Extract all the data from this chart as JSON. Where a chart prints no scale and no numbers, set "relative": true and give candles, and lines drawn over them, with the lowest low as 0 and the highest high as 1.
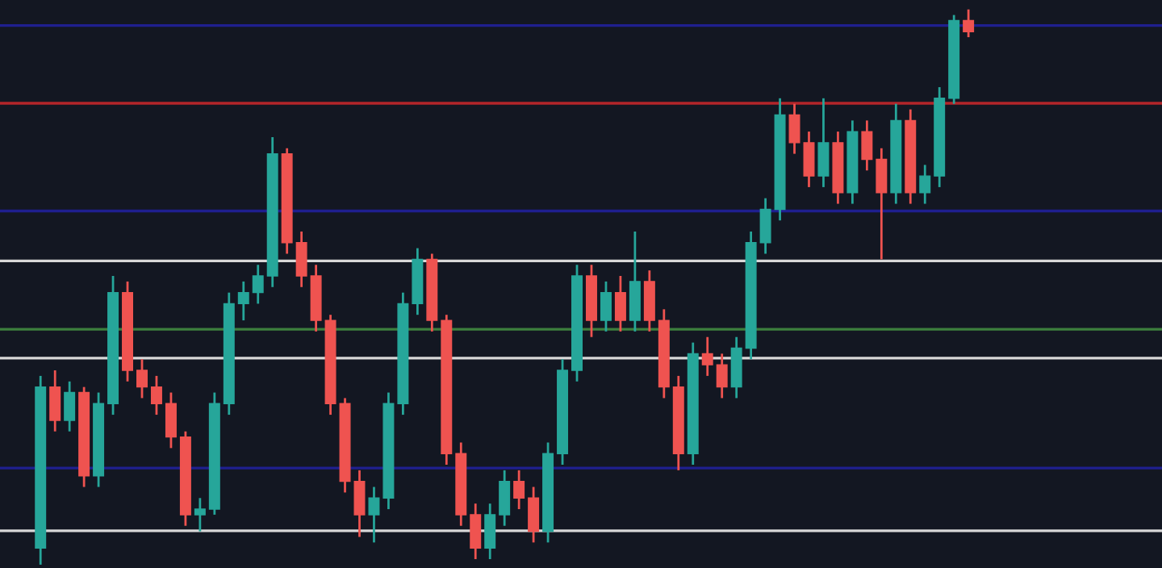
{
  "chart_data": {
    "type": "candlestick",
    "relative": true,
    "categories": [
      null,
      null,
      null,
      null,
      null,
      null,
      null,
      null,
      null,
      null,
      null,
      null,
      null,
      null,
      null,
      null,
      null,
      null,
      null,
      null,
      null,
      null,
      null,
      null,
      null,
      null,
      null,
      null,
      null,
      null,
      null,
      null,
      null,
      null,
      null,
      null,
      null,
      null,
      null,
      null,
      null,
      null,
      null,
      null,
      null,
      null,
      null,
      null,
      null,
      null,
      null,
      null,
      null,
      null,
      null,
      null,
      null,
      null,
      null,
      null,
      null,
      null,
      null,
      null,
      null
    ],
    "ohlc": [
      [
        0.03,
        0.34,
        0.0,
        0.32
      ],
      [
        0.32,
        0.35,
        0.24,
        0.26
      ],
      [
        0.26,
        0.33,
        0.24,
        0.31
      ],
      [
        0.31,
        0.32,
        0.14,
        0.16
      ],
      [
        0.16,
        0.31,
        0.14,
        0.29
      ],
      [
        0.29,
        0.52,
        0.27,
        0.49
      ],
      [
        0.49,
        0.51,
        0.33,
        0.35
      ],
      [
        0.35,
        0.37,
        0.3,
        0.32
      ],
      [
        0.32,
        0.34,
        0.27,
        0.29
      ],
      [
        0.29,
        0.31,
        0.21,
        0.23
      ],
      [
        0.23,
        0.24,
        0.07,
        0.09
      ],
      [
        0.09,
        0.12,
        0.06,
        0.1
      ],
      [
        0.1,
        0.31,
        0.09,
        0.29
      ],
      [
        0.29,
        0.49,
        0.27,
        0.47
      ],
      [
        0.47,
        0.51,
        0.44,
        0.49
      ],
      [
        0.49,
        0.54,
        0.47,
        0.52
      ],
      [
        0.52,
        0.77,
        0.5,
        0.74
      ],
      [
        0.74,
        0.75,
        0.56,
        0.58
      ],
      [
        0.58,
        0.6,
        0.5,
        0.52
      ],
      [
        0.52,
        0.54,
        0.42,
        0.44
      ],
      [
        0.44,
        0.45,
        0.27,
        0.29
      ],
      [
        0.29,
        0.3,
        0.13,
        0.15
      ],
      [
        0.15,
        0.17,
        0.05,
        0.09
      ],
      [
        0.09,
        0.14,
        0.04,
        0.12
      ],
      [
        0.12,
        0.31,
        0.1,
        0.29
      ],
      [
        0.29,
        0.49,
        0.27,
        0.47
      ],
      [
        0.47,
        0.57,
        0.45,
        0.55
      ],
      [
        0.55,
        0.56,
        0.42,
        0.44
      ],
      [
        0.44,
        0.45,
        0.18,
        0.2
      ],
      [
        0.2,
        0.22,
        0.07,
        0.09
      ],
      [
        0.09,
        0.11,
        0.01,
        0.03
      ],
      [
        0.03,
        0.11,
        0.01,
        0.09
      ],
      [
        0.09,
        0.17,
        0.07,
        0.15
      ],
      [
        0.15,
        0.17,
        0.1,
        0.12
      ],
      [
        0.12,
        0.14,
        0.04,
        0.06
      ],
      [
        0.06,
        0.22,
        0.04,
        0.2
      ],
      [
        0.2,
        0.37,
        0.18,
        0.35
      ],
      [
        0.35,
        0.54,
        0.33,
        0.52
      ],
      [
        0.52,
        0.54,
        0.41,
        0.44
      ],
      [
        0.44,
        0.51,
        0.42,
        0.49
      ],
      [
        0.49,
        0.52,
        0.42,
        0.44
      ],
      [
        0.44,
        0.6,
        0.42,
        0.51
      ],
      [
        0.51,
        0.53,
        0.42,
        0.44
      ],
      [
        0.44,
        0.46,
        0.3,
        0.32
      ],
      [
        0.32,
        0.34,
        0.17,
        0.2
      ],
      [
        0.2,
        0.4,
        0.18,
        0.38
      ],
      [
        0.38,
        0.41,
        0.34,
        0.36
      ],
      [
        0.36,
        0.38,
        0.3,
        0.32
      ],
      [
        0.32,
        0.41,
        0.3,
        0.39
      ],
      [
        0.39,
        0.6,
        0.37,
        0.58
      ],
      [
        0.58,
        0.66,
        0.56,
        0.64
      ],
      [
        0.64,
        0.84,
        0.62,
        0.81
      ],
      [
        0.81,
        0.83,
        0.74,
        0.76
      ],
      [
        0.76,
        0.78,
        0.68,
        0.7
      ],
      [
        0.7,
        0.84,
        0.68,
        0.76
      ],
      [
        0.76,
        0.78,
        0.65,
        0.67
      ],
      [
        0.67,
        0.8,
        0.65,
        0.78
      ],
      [
        0.78,
        0.8,
        0.71,
        0.73
      ],
      [
        0.73,
        0.75,
        0.55,
        0.67
      ],
      [
        0.67,
        0.83,
        0.65,
        0.8
      ],
      [
        0.8,
        0.82,
        0.65,
        0.67
      ],
      [
        0.67,
        0.72,
        0.65,
        0.7
      ],
      [
        0.7,
        0.86,
        0.68,
        0.84
      ],
      [
        0.84,
        0.99,
        0.83,
        0.98
      ],
      [
        0.98,
        1.0,
        0.95,
        0.96
      ]
    ],
    "ref_lines": [
      {
        "axis": "y",
        "value": 0.971,
        "color": "#1f1f8f"
      },
      {
        "axis": "y",
        "value": 0.831,
        "color": "#b3262a"
      },
      {
        "axis": "y",
        "value": 0.637,
        "color": "#1f1f8f"
      },
      {
        "axis": "y",
        "value": 0.547,
        "color": "#d8d8d8"
      },
      {
        "axis": "y",
        "value": 0.424,
        "color": "#3d7f3d"
      },
      {
        "axis": "y",
        "value": 0.372,
        "color": "#d8d8d8"
      },
      {
        "axis": "y",
        "value": 0.174,
        "color": "#1f1f8f"
      },
      {
        "axis": "y",
        "value": 0.061,
        "color": "#d8d8d8"
      }
    ]
  }
}
